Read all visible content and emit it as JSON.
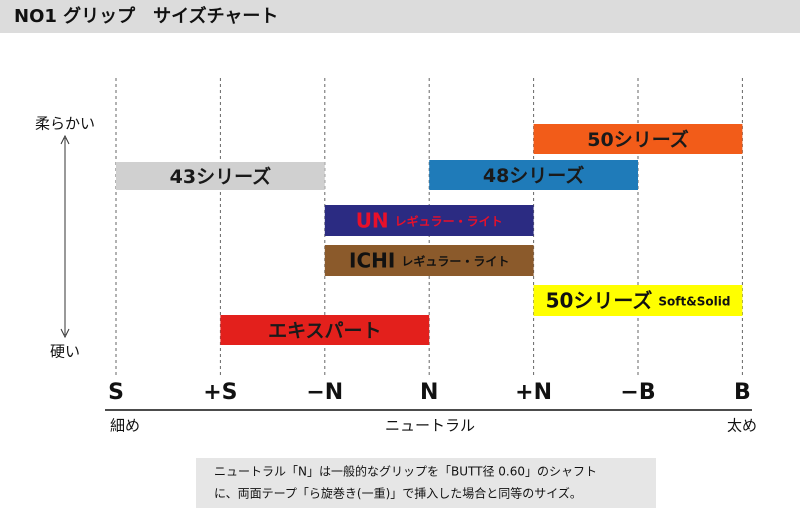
{
  "header": {
    "title": "NO1 グリップ　サイズチャート"
  },
  "axis": {
    "sizes": [
      "S",
      "+S",
      "−N",
      "N",
      "+N",
      "−B",
      "B"
    ],
    "thin_label": "細め",
    "neutral_label": "ニュートラル",
    "thick_label": "太め",
    "soft_label": "柔らかい",
    "hard_label": "硬い"
  },
  "bars": [
    {
      "label": "50シリーズ",
      "from": "+N",
      "to": "B",
      "color": "#f25c19",
      "text_color": "#1a1a1a"
    },
    {
      "label": "43シリーズ",
      "from": "S",
      "to": "−N",
      "color": "#d0d0d0",
      "text_color": "#1a1a1a"
    },
    {
      "label": "48シリーズ",
      "from": "N",
      "to": "−B",
      "color": "#1f7bb9",
      "text_color": "#1a1a1a"
    },
    {
      "label": "UN",
      "sub": "レギュラー・ライト",
      "from": "−N",
      "to": "+N",
      "color": "#2b2b82",
      "text_color": "#e8102a"
    },
    {
      "label": "ICHI",
      "sub": "レギュラー・ライト",
      "from": "−N",
      "to": "+N",
      "color": "#8b5a2b",
      "text_color": "#111111"
    },
    {
      "label": "50シリーズ",
      "sub": "Soft&Solid",
      "from": "+N",
      "to": "B",
      "color": "#ffff00",
      "text_color": "#111111"
    },
    {
      "label": "エキスパート",
      "from": "+S",
      "to": "N",
      "color": "#e3201c",
      "text_color": "#1a1a1a"
    }
  ],
  "note": {
    "lines": [
      "ニュートラル「N」は一般的なグリップを「BUTT径 0.60」のシャフト",
      "に、両面テープ「ら旋巻き(一重)」で挿入した場合と同等のサイズ。"
    ]
  }
}
